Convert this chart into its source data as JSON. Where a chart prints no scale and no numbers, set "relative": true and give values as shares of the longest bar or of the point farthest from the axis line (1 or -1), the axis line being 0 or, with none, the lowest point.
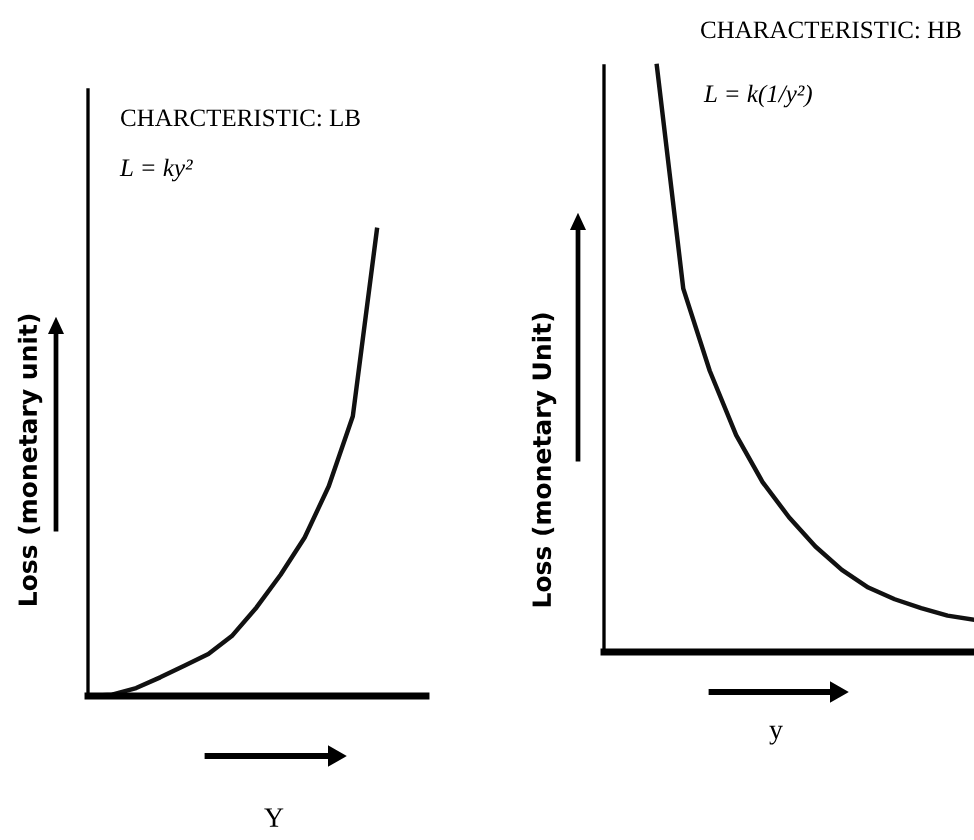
{
  "chart_data": [
    {
      "type": "line",
      "title": "CHARCTERISTIC: LB",
      "annotations": [
        "L = ky²"
      ],
      "xlabel": "Y",
      "ylabel": "Loss (monetary unit)",
      "relative": true,
      "color": "#111111",
      "categories": [
        null,
        null,
        null,
        null,
        null,
        null,
        null,
        null,
        null,
        null,
        null,
        null,
        null
      ],
      "values": [
        0,
        0.003,
        0.017,
        0.04,
        0.065,
        0.09,
        0.13,
        0.19,
        0.26,
        0.34,
        0.45,
        0.6,
        1.0
      ]
    },
    {
      "type": "line",
      "title": "CHARACTERISTIC: HB",
      "annotations": [
        "L = k(1/y²)"
      ],
      "xlabel": "y",
      "ylabel": "Loss (monetary Unit)",
      "relative": true,
      "color": "#111111",
      "categories": [
        null,
        null,
        null,
        null,
        null,
        null,
        null,
        null,
        null,
        null,
        null,
        null,
        null,
        null,
        null
      ],
      "values": [
        null,
        null,
        1.0,
        0.62,
        0.48,
        0.37,
        0.29,
        0.23,
        0.18,
        0.14,
        0.11,
        0.09,
        0.075,
        0.062,
        0.055
      ]
    }
  ]
}
